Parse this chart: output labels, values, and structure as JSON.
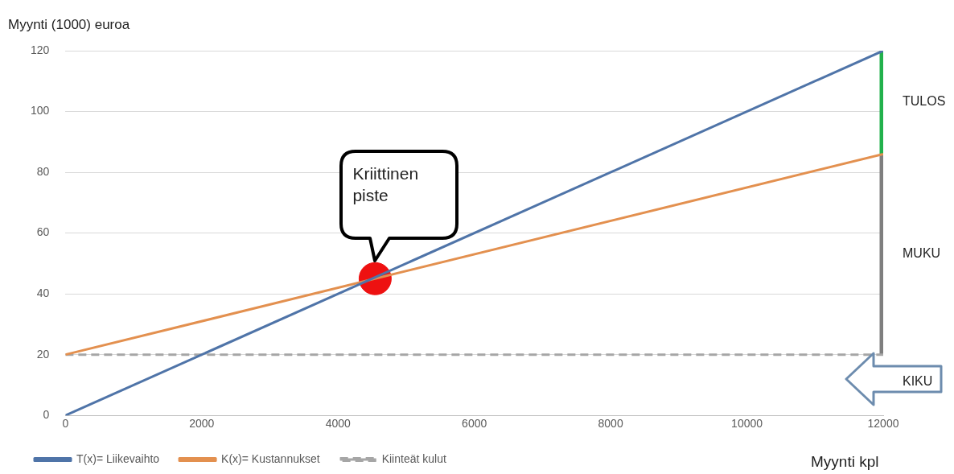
{
  "chart_data": {
    "type": "line",
    "ylabel": "Myynti (1000) euroa",
    "xlabel": "Myynti kpl",
    "xlim": [
      0,
      12000
    ],
    "xticks": [
      0,
      2000,
      4000,
      6000,
      8000,
      10000,
      12000
    ],
    "ylim": [
      0,
      120
    ],
    "yticks": [
      0,
      20,
      40,
      60,
      80,
      100,
      120
    ],
    "grid": "y",
    "legend": "bottom",
    "marker": "none",
    "series": [
      {
        "name": "T(x)= Liikevaihto",
        "type": "line",
        "color": "#4f74a8",
        "x": [
          0,
          12000
        ],
        "values": [
          0,
          120
        ]
      },
      {
        "name": "K(x)= Kustannukset",
        "type": "line",
        "color": "#e3904f",
        "x": [
          0,
          12000
        ],
        "values": [
          20,
          86
        ]
      },
      {
        "name": "Kiinteät kulut",
        "type": "line",
        "color": "#a6a6a6",
        "line_style": "dashed",
        "x": [
          0,
          12000
        ],
        "values": [
          20,
          20
        ]
      },
      {
        "type": "line",
        "color": "#22b14c",
        "x": [
          12000,
          12000
        ],
        "values": [
          86,
          120
        ]
      },
      {
        "type": "line",
        "color": "#7f7f7f",
        "x": [
          12000,
          12000
        ],
        "values": [
          20,
          86
        ]
      },
      {
        "type": "scatter",
        "color": "#ee1111",
        "marker": "circle",
        "x": [
          4545
        ],
        "values": [
          45
        ]
      }
    ],
    "annotations": [
      "Kriittinen piste",
      "TULOS",
      "MUKU",
      "KIKU"
    ]
  }
}
